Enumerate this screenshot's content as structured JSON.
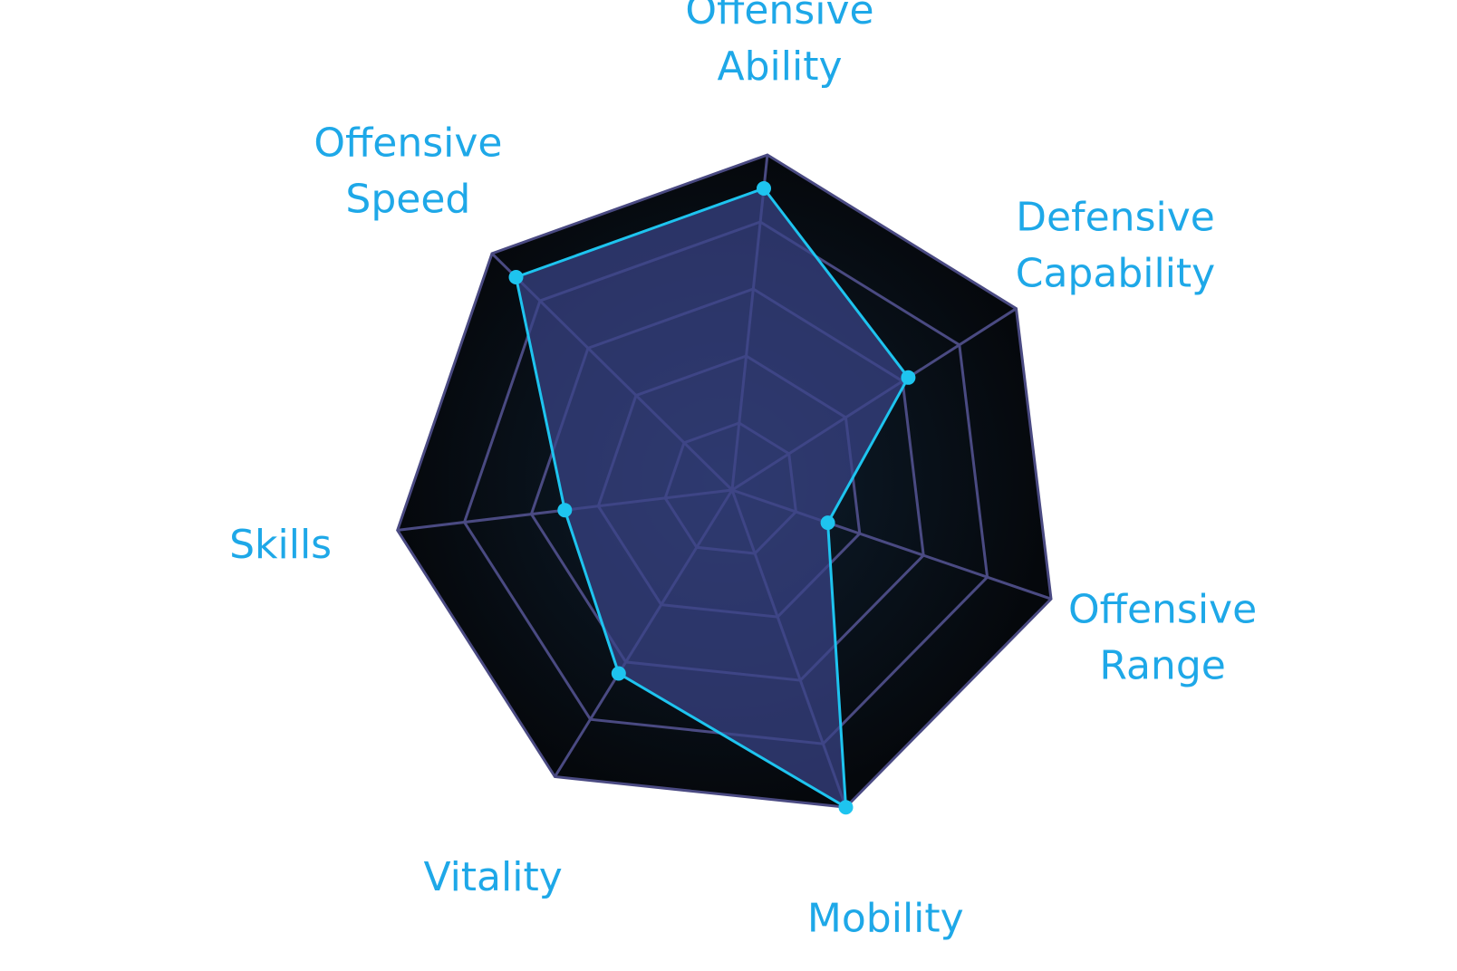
{
  "chart_data": {
    "type": "radar",
    "title": "",
    "axes": [
      {
        "label": [
          "Offensive",
          "Ability"
        ]
      },
      {
        "label": [
          "Defensive",
          "Capability"
        ]
      },
      {
        "label": [
          "Offensive",
          "Range"
        ]
      },
      {
        "label": [
          "Mobility"
        ]
      },
      {
        "label": [
          "Vitality"
        ]
      },
      {
        "label": [
          "Skills"
        ]
      },
      {
        "label": [
          "Offensive",
          "Speed"
        ]
      }
    ],
    "max": 5,
    "rings": 5,
    "grid": true,
    "legend": "none",
    "series": [
      {
        "values": [
          4.5,
          3.1,
          1.5,
          5.0,
          3.2,
          2.5,
          4.5
        ]
      }
    ],
    "colors": {
      "background_outer": "#05080c",
      "background_inner": "#0e1e2e",
      "grid": "#4a4a82",
      "series_line": "#1ec4ef",
      "series_fill": "#3a4488",
      "series_point": "#1ec4ef",
      "label": "#1ea8e8"
    }
  }
}
